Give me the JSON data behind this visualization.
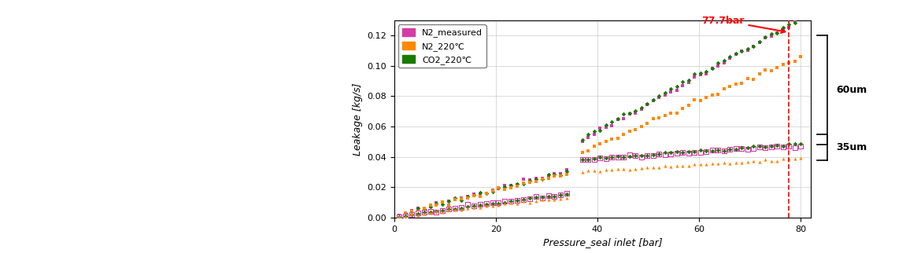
{
  "xlim": [
    0,
    82
  ],
  "ylim": [
    0,
    0.13
  ],
  "xlabel": "Pressure_seal inlet [bar]",
  "ylabel": "Leakage [kg/s]",
  "vline_x": 77.7,
  "vline_label": "77.7bar",
  "xticks": [
    0,
    20,
    40,
    60,
    80
  ],
  "yticks": [
    0,
    0.02,
    0.04,
    0.06,
    0.08,
    0.1,
    0.12
  ],
  "legend_entries": [
    "N2_measured",
    "N2_220℃",
    "CO2_220℃"
  ],
  "legend_colors": [
    "#d63ba8",
    "#ff8800",
    "#1a7a00"
  ],
  "bracket_60um_ylo": 0.048,
  "bracket_60um_yhi": 0.12,
  "bracket_35um_ylo": 0.038,
  "bracket_35um_yhi": 0.055,
  "bracket_label_60": "60um",
  "bracket_label_35": "35um",
  "bg_color": "#ffffff",
  "grid_color": "#cccccc",
  "pink": "#d63ba8",
  "orange": "#ff8800",
  "dgreen": "#1a7a00"
}
